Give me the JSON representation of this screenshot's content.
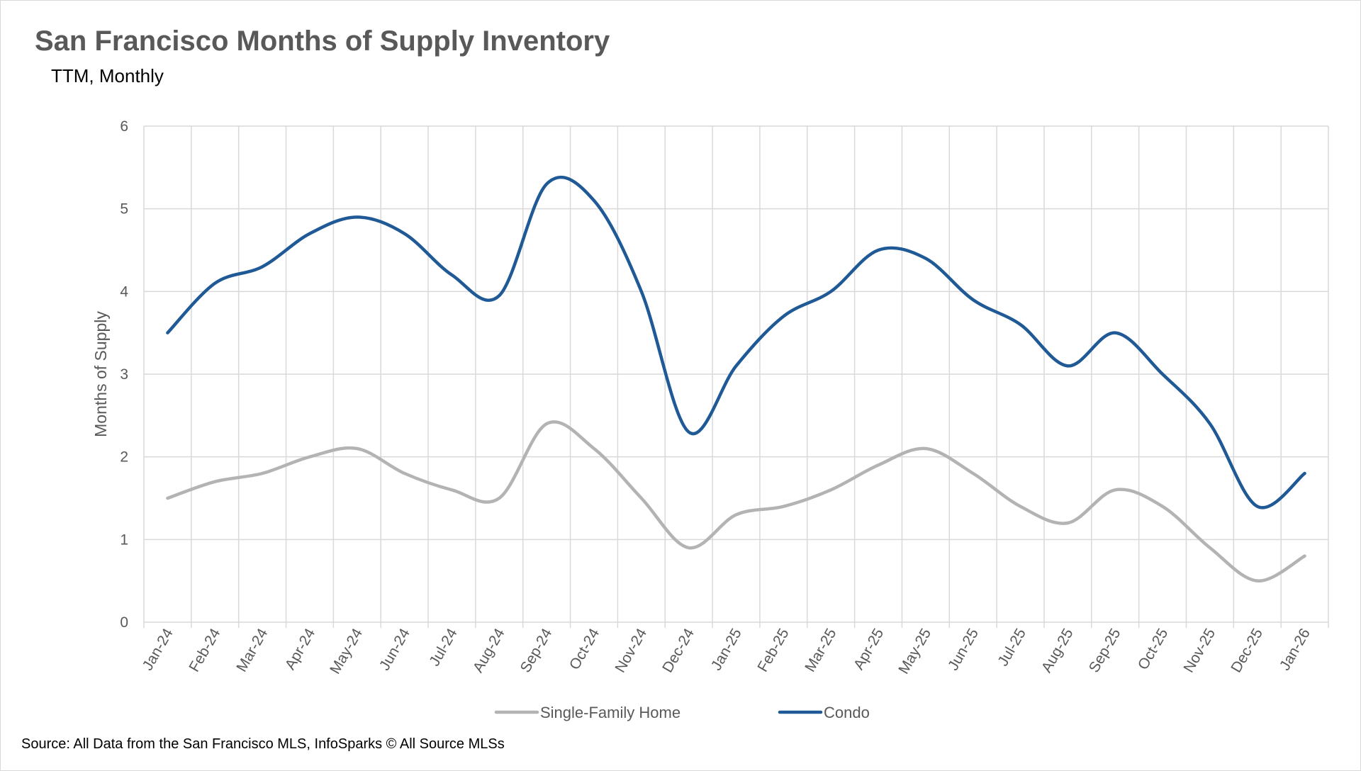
{
  "chart_data": {
    "type": "line",
    "title": "San Francisco Months of Supply Inventory",
    "subtitle": "TTM, Monthly",
    "xlabel": "",
    "ylabel": "Months of Supply",
    "ylim": [
      0,
      6
    ],
    "yticks": [
      "0",
      "1",
      "2",
      "3",
      "4",
      "5",
      "6"
    ],
    "grid": true,
    "smoothed": true,
    "legend_position": "bottom",
    "categories": [
      "Jan-24",
      "Feb-24",
      "Mar-24",
      "Apr-24",
      "May-24",
      "Jun-24",
      "Jul-24",
      "Aug-24",
      "Sep-24",
      "Oct-24",
      "Nov-24",
      "Dec-24",
      "Jan-25",
      "Feb-25",
      "Mar-25",
      "Apr-25",
      "May-25",
      "Jun-25",
      "Jul-25",
      "Aug-25",
      "Sep-25",
      "Oct-25",
      "Nov-25",
      "Dec-25",
      "Jan-26"
    ],
    "series": [
      {
        "name": "Single-Family Home",
        "color": "#b3b3b3",
        "values": [
          1.5,
          1.7,
          1.8,
          2.0,
          2.1,
          1.8,
          1.6,
          1.5,
          2.4,
          2.1,
          1.5,
          0.9,
          1.3,
          1.4,
          1.6,
          1.9,
          2.1,
          1.8,
          1.4,
          1.2,
          1.6,
          1.4,
          0.9,
          0.5,
          0.8
        ]
      },
      {
        "name": "Condo",
        "color": "#1f5a96",
        "values": [
          3.5,
          4.1,
          4.3,
          4.7,
          4.9,
          4.7,
          4.2,
          3.95,
          5.3,
          5.1,
          4.0,
          2.3,
          3.1,
          3.7,
          4.0,
          4.5,
          4.4,
          3.9,
          3.6,
          3.1,
          3.5,
          3.0,
          2.4,
          1.4,
          1.8
        ]
      }
    ],
    "source": "Source: All Data from the San Francisco MLS, InfoSparks © All Source MLSs"
  }
}
